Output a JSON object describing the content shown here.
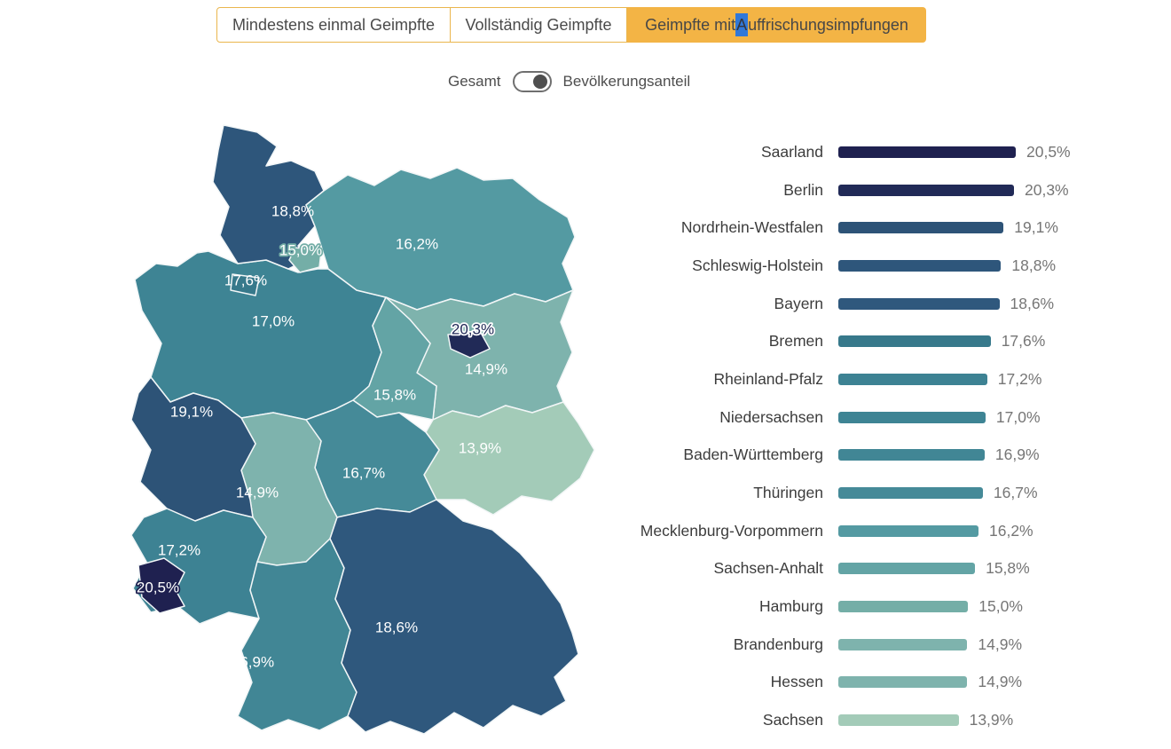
{
  "tabs": [
    {
      "label": "Mindestens einmal Geimpfte",
      "active": false
    },
    {
      "label": "Vollständig Geimpfte",
      "active": false
    },
    {
      "label_prefix": "Geimpfte mit ",
      "selected_letter": "A",
      "label_suffix": "uffrischungsimpfungen",
      "active": true
    }
  ],
  "toggle": {
    "left_label": "Gesamt",
    "right_label": "Bevölkerungsanteil",
    "state": "right"
  },
  "colors": {
    "active_tab_bg": "#f3b445",
    "tab_border": "#eab64d",
    "selection_highlight": "#3178d8",
    "bar_value_text": "#767676",
    "bar_name_text": "#3c3c3c",
    "map_border": "#f2f6f7"
  },
  "states": [
    {
      "key": "sl",
      "name": "Saarland",
      "value": 20.5,
      "value_label": "20,5%",
      "color": "#1f2150",
      "label_fill": "#ffffff",
      "label_stroke": "#1f2150"
    },
    {
      "key": "be",
      "name": "Berlin",
      "value": 20.3,
      "value_label": "20,3%",
      "color": "#212a57",
      "label_fill": "#212a57",
      "label_stroke": "#ffffff"
    },
    {
      "key": "nw",
      "name": "Nordrhein-Westfalen",
      "value": 19.1,
      "value_label": "19,1%",
      "color": "#2d5377",
      "label_fill": "#ffffff"
    },
    {
      "key": "sh",
      "name": "Schleswig-Holstein",
      "value": 18.8,
      "value_label": "18,8%",
      "color": "#2e567b",
      "label_fill": "#ffffff"
    },
    {
      "key": "by",
      "name": "Bayern",
      "value": 18.6,
      "value_label": "18,6%",
      "color": "#2f587d",
      "label_fill": "#ffffff"
    },
    {
      "key": "hb",
      "name": "Bremen",
      "value": 17.6,
      "value_label": "17,6%",
      "color": "#37798b",
      "label_fill": "#ffffff"
    },
    {
      "key": "rp",
      "name": "Rheinland-Pfalz",
      "value": 17.2,
      "value_label": "17,2%",
      "color": "#3d8293",
      "label_fill": "#ffffff"
    },
    {
      "key": "ni",
      "name": "Niedersachsen",
      "value": 17.0,
      "value_label": "17,0%",
      "color": "#3e8494",
      "label_fill": "#ffffff"
    },
    {
      "key": "bw",
      "name": "Baden-Württemberg",
      "value": 16.9,
      "value_label": "16,9%",
      "color": "#418695",
      "label_fill": "#ffffff"
    },
    {
      "key": "th",
      "name": "Thüringen",
      "value": 16.7,
      "value_label": "16,7%",
      "color": "#458a98",
      "label_fill": "#ffffff"
    },
    {
      "key": "mv",
      "name": "Mecklenburg-Vorpommern",
      "value": 16.2,
      "value_label": "16,2%",
      "color": "#549aa2",
      "label_fill": "#ffffff"
    },
    {
      "key": "st",
      "name": "Sachsen-Anhalt",
      "value": 15.8,
      "value_label": "15,8%",
      "color": "#63a4a5",
      "label_fill": "#ffffff"
    },
    {
      "key": "hh",
      "name": "Hamburg",
      "value": 15.0,
      "value_label": "15,0%",
      "color": "#74aea7",
      "label_fill": "#ffffff",
      "label_stroke": "#74aea7"
    },
    {
      "key": "bb",
      "name": "Brandenburg",
      "value": 14.9,
      "value_label": "14,9%",
      "color": "#7eb3ad",
      "label_fill": "#ffffff"
    },
    {
      "key": "he",
      "name": "Hessen",
      "value": 14.9,
      "value_label": "14,9%",
      "color": "#7eb3ad",
      "label_fill": "#ffffff"
    },
    {
      "key": "sn",
      "name": "Sachsen",
      "value": 13.9,
      "value_label": "13,9%",
      "color": "#a3cbb8",
      "label_fill": "#ffffff"
    }
  ],
  "chart_data": {
    "type": "bar",
    "orientation": "horizontal",
    "title": "",
    "xlabel": "",
    "ylabel": "",
    "unit": "%",
    "categories": [
      "Saarland",
      "Berlin",
      "Nordrhein-Westfalen",
      "Schleswig-Holstein",
      "Bayern",
      "Bremen",
      "Rheinland-Pfalz",
      "Niedersachsen",
      "Baden-Württemberg",
      "Thüringen",
      "Mecklenburg-Vorpommern",
      "Sachsen-Anhalt",
      "Hamburg",
      "Brandenburg",
      "Hessen",
      "Sachsen"
    ],
    "values": [
      20.5,
      20.3,
      19.1,
      18.8,
      18.6,
      17.6,
      17.2,
      17.0,
      16.9,
      16.7,
      16.2,
      15.8,
      15.0,
      14.9,
      14.9,
      13.9
    ],
    "value_labels": [
      "20,5%",
      "20,3%",
      "19,1%",
      "18,8%",
      "18,6%",
      "17,6%",
      "17,2%",
      "17,0%",
      "16,9%",
      "16,7%",
      "16,2%",
      "15,8%",
      "15,0%",
      "14,9%",
      "14,9%",
      "13,9%"
    ],
    "xlim": [
      0,
      20.5
    ],
    "grid": false,
    "legend": false,
    "companion_visual": "choropleth map of German federal states shaded dark (high %) to light green (low %), each state annotated with its value label"
  }
}
